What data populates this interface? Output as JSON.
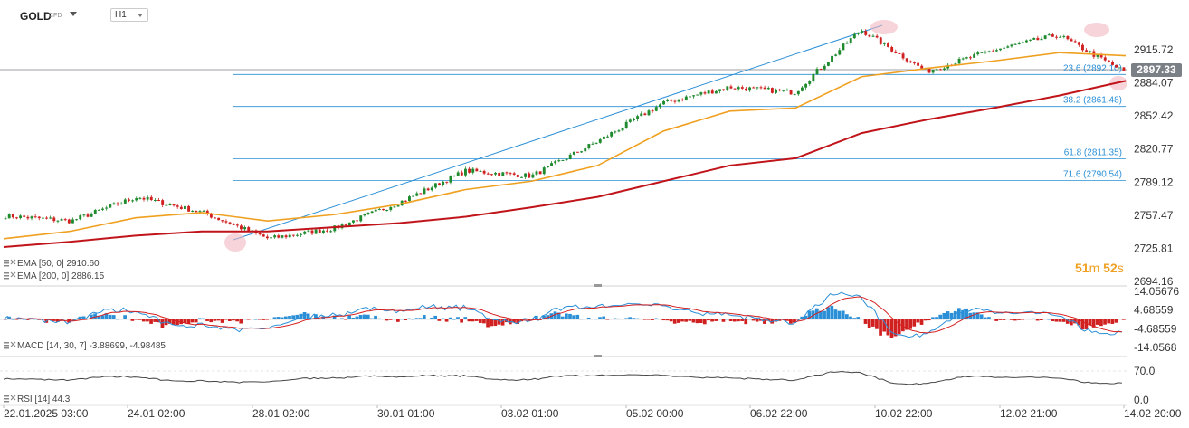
{
  "header": {
    "symbol": "GOLD",
    "instrument_type": "CFD",
    "timeframe": "H1"
  },
  "price_axis": {
    "labels": [
      "2915.72",
      "2884.07",
      "2852.42",
      "2820.77",
      "2789.12",
      "2757.47",
      "2725.81",
      "2694.16"
    ],
    "current_price": "2897.33"
  },
  "time_axis": {
    "labels": [
      "22.01.2025  03:00",
      "24.01  02:00",
      "28.01  02:00",
      "30.01  01:00",
      "03.02  01:00",
      "05.02  00:00",
      "06.02  22:00",
      "10.02  22:00",
      "12.02  21:00",
      "14.02  20:00"
    ]
  },
  "fibonacci": [
    {
      "label": "23.6 (2892.10)",
      "value": 2892.1
    },
    {
      "label": "38.2 (2861.48)",
      "value": 2861.48
    },
    {
      "label": "61.8 (2811.35)",
      "value": 2811.35
    },
    {
      "label": "71.6 (2790.54)",
      "value": 2790.54
    }
  ],
  "indicators": {
    "ema50": {
      "label": "EMA  [50, 0]  2910.60",
      "color": "#f0a020"
    },
    "ema200": {
      "label": "EMA  [200, 0]  2886.15",
      "color": "#c0141a"
    },
    "macd": {
      "label": "MACD  [14, 30, 7]  -3.88699,  -4.98485",
      "axis": [
        "14.05676",
        "4.68559",
        "-4.68559",
        "-14.0568"
      ]
    },
    "rsi": {
      "label": "RSI  [14]  44.3",
      "axis": [
        "70.0",
        "0.0"
      ]
    }
  },
  "timer": {
    "minutes": "51",
    "m_unit": "m",
    "seconds": "52",
    "s_unit": "s"
  },
  "chart_data": {
    "type": "line",
    "x": [
      "22.01 03:00",
      "23.01",
      "24.01 02:00",
      "27.01",
      "28.01 02:00",
      "29.01",
      "30.01 01:00",
      "31.01",
      "03.02 01:00",
      "04.02",
      "05.02 00:00",
      "06.02 22:00",
      "07.02",
      "10.02 22:00",
      "11.02",
      "12.02 21:00",
      "13.02",
      "14.02 20:00"
    ],
    "series": [
      {
        "values": [
          2757,
          2752,
          2775,
          2760,
          2735,
          2745,
          2770,
          2800,
          2795,
          2828,
          2865,
          2880,
          2875,
          2935,
          2895,
          2915,
          2930,
          2895
        ]
      },
      {
        "values": [
          2735,
          2742,
          2755,
          2760,
          2752,
          2758,
          2768,
          2782,
          2790,
          2805,
          2838,
          2857,
          2860,
          2890,
          2898,
          2905,
          2913,
          2910
        ]
      },
      {
        "values": [
          2727,
          2732,
          2738,
          2742,
          2742,
          2746,
          2750,
          2756,
          2765,
          2775,
          2790,
          2805,
          2812,
          2836,
          2849,
          2860,
          2872,
          2886
        ]
      }
    ],
    "ylim": [
      2694.16,
      2940
    ]
  }
}
